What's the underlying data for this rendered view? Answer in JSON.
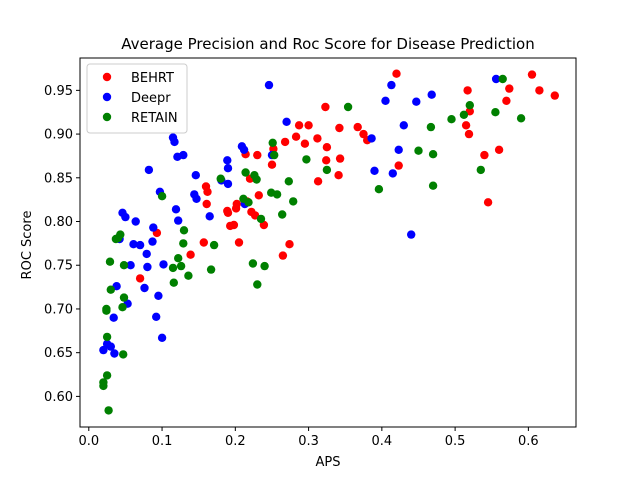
{
  "chart_data": {
    "type": "scatter",
    "title": "Average Precision and Roc Score for Disease Prediction",
    "xlabel": "APS",
    "ylabel": "ROC Score",
    "xlim": [
      -0.012,
      0.665
    ],
    "ylim": [
      0.565,
      0.987
    ],
    "xticks": [
      0.0,
      0.1,
      0.2,
      0.3,
      0.4,
      0.5,
      0.6
    ],
    "xtick_labels": [
      "0.0",
      "0.1",
      "0.2",
      "0.3",
      "0.4",
      "0.5",
      "0.6"
    ],
    "yticks": [
      0.6,
      0.65,
      0.7,
      0.75,
      0.8,
      0.85,
      0.9,
      0.95
    ],
    "ytick_labels": [
      "0.60",
      "0.65",
      "0.70",
      "0.75",
      "0.80",
      "0.85",
      "0.90",
      "0.95"
    ],
    "grid": false,
    "legend_position": "top-left",
    "series": [
      {
        "name": "BEHRT",
        "color": "#ff0000",
        "points": [
          [
            0.07,
            0.735
          ],
          [
            0.093,
            0.787
          ],
          [
            0.139,
            0.762
          ],
          [
            0.157,
            0.776
          ],
          [
            0.16,
            0.84
          ],
          [
            0.162,
            0.834
          ],
          [
            0.161,
            0.82
          ],
          [
            0.189,
            0.812
          ],
          [
            0.19,
            0.81
          ],
          [
            0.193,
            0.795
          ],
          [
            0.198,
            0.796
          ],
          [
            0.201,
            0.815
          ],
          [
            0.202,
            0.82
          ],
          [
            0.205,
            0.776
          ],
          [
            0.214,
            0.877
          ],
          [
            0.216,
            0.823
          ],
          [
            0.22,
            0.849
          ],
          [
            0.222,
            0.811
          ],
          [
            0.227,
            0.807
          ],
          [
            0.23,
            0.876
          ],
          [
            0.232,
            0.83
          ],
          [
            0.239,
            0.796
          ],
          [
            0.25,
            0.865
          ],
          [
            0.252,
            0.883
          ],
          [
            0.265,
            0.761
          ],
          [
            0.268,
            0.891
          ],
          [
            0.274,
            0.774
          ],
          [
            0.283,
            0.897
          ],
          [
            0.287,
            0.91
          ],
          [
            0.295,
            0.889
          ],
          [
            0.3,
            0.91
          ],
          [
            0.312,
            0.895
          ],
          [
            0.313,
            0.846
          ],
          [
            0.323,
            0.931
          ],
          [
            0.324,
            0.87
          ],
          [
            0.325,
            0.885
          ],
          [
            0.341,
            0.853
          ],
          [
            0.342,
            0.907
          ],
          [
            0.343,
            0.872
          ],
          [
            0.367,
            0.908
          ],
          [
            0.375,
            0.9
          ],
          [
            0.38,
            0.893
          ],
          [
            0.42,
            0.969
          ],
          [
            0.423,
            0.864
          ],
          [
            0.515,
            0.91
          ],
          [
            0.517,
            0.95
          ],
          [
            0.519,
            0.9
          ],
          [
            0.52,
            0.926
          ],
          [
            0.54,
            0.876
          ],
          [
            0.545,
            0.822
          ],
          [
            0.56,
            0.882
          ],
          [
            0.57,
            0.938
          ],
          [
            0.574,
            0.952
          ],
          [
            0.605,
            0.968
          ],
          [
            0.615,
            0.95
          ],
          [
            0.636,
            0.944
          ]
        ]
      },
      {
        "name": "Deepr",
        "color": "#0000ff",
        "points": [
          [
            0.02,
            0.653
          ],
          [
            0.025,
            0.66
          ],
          [
            0.03,
            0.657
          ],
          [
            0.034,
            0.69
          ],
          [
            0.035,
            0.649
          ],
          [
            0.038,
            0.726
          ],
          [
            0.042,
            0.78
          ],
          [
            0.046,
            0.81
          ],
          [
            0.05,
            0.805
          ],
          [
            0.053,
            0.706
          ],
          [
            0.057,
            0.75
          ],
          [
            0.061,
            0.774
          ],
          [
            0.064,
            0.8
          ],
          [
            0.07,
            0.773
          ],
          [
            0.076,
            0.724
          ],
          [
            0.079,
            0.763
          ],
          [
            0.08,
            0.748
          ],
          [
            0.082,
            0.859
          ],
          [
            0.087,
            0.777
          ],
          [
            0.088,
            0.793
          ],
          [
            0.092,
            0.691
          ],
          [
            0.095,
            0.715
          ],
          [
            0.097,
            0.834
          ],
          [
            0.1,
            0.667
          ],
          [
            0.102,
            0.751
          ],
          [
            0.115,
            0.896
          ],
          [
            0.117,
            0.891
          ],
          [
            0.119,
            0.814
          ],
          [
            0.121,
            0.874
          ],
          [
            0.122,
            0.801
          ],
          [
            0.129,
            0.876
          ],
          [
            0.144,
            0.831
          ],
          [
            0.146,
            0.853
          ],
          [
            0.147,
            0.826
          ],
          [
            0.165,
            0.806
          ],
          [
            0.181,
            0.847
          ],
          [
            0.189,
            0.87
          ],
          [
            0.19,
            0.861
          ],
          [
            0.19,
            0.843
          ],
          [
            0.209,
            0.886
          ],
          [
            0.212,
            0.882
          ],
          [
            0.213,
            0.82
          ],
          [
            0.246,
            0.956
          ],
          [
            0.25,
            0.876
          ],
          [
            0.27,
            0.914
          ],
          [
            0.386,
            0.895
          ],
          [
            0.39,
            0.858
          ],
          [
            0.405,
            0.938
          ],
          [
            0.413,
            0.956
          ],
          [
            0.415,
            0.855
          ],
          [
            0.423,
            0.882
          ],
          [
            0.43,
            0.91
          ],
          [
            0.44,
            0.785
          ],
          [
            0.447,
            0.937
          ],
          [
            0.468,
            0.945
          ],
          [
            0.556,
            0.963
          ]
        ]
      },
      {
        "name": "RETAIN",
        "color": "#008000",
        "points": [
          [
            0.02,
            0.612
          ],
          [
            0.02,
            0.616
          ],
          [
            0.024,
            0.698
          ],
          [
            0.024,
            0.7
          ],
          [
            0.025,
            0.624
          ],
          [
            0.025,
            0.668
          ],
          [
            0.027,
            0.584
          ],
          [
            0.029,
            0.754
          ],
          [
            0.03,
            0.722
          ],
          [
            0.037,
            0.78
          ],
          [
            0.04,
            0.781
          ],
          [
            0.043,
            0.785
          ],
          [
            0.046,
            0.702
          ],
          [
            0.047,
            0.648
          ],
          [
            0.048,
            0.713
          ],
          [
            0.048,
            0.75
          ],
          [
            0.1,
            0.829
          ],
          [
            0.115,
            0.747
          ],
          [
            0.116,
            0.73
          ],
          [
            0.122,
            0.758
          ],
          [
            0.126,
            0.749
          ],
          [
            0.129,
            0.775
          ],
          [
            0.13,
            0.79
          ],
          [
            0.136,
            0.738
          ],
          [
            0.167,
            0.745
          ],
          [
            0.171,
            0.773
          ],
          [
            0.18,
            0.849
          ],
          [
            0.211,
            0.826
          ],
          [
            0.214,
            0.856
          ],
          [
            0.218,
            0.822
          ],
          [
            0.224,
            0.752
          ],
          [
            0.226,
            0.853
          ],
          [
            0.229,
            0.848
          ],
          [
            0.23,
            0.728
          ],
          [
            0.235,
            0.803
          ],
          [
            0.24,
            0.749
          ],
          [
            0.249,
            0.833
          ],
          [
            0.251,
            0.89
          ],
          [
            0.253,
            0.876
          ],
          [
            0.257,
            0.831
          ],
          [
            0.264,
            0.808
          ],
          [
            0.273,
            0.846
          ],
          [
            0.279,
            0.823
          ],
          [
            0.297,
            0.871
          ],
          [
            0.325,
            0.859
          ],
          [
            0.354,
            0.931
          ],
          [
            0.396,
            0.837
          ],
          [
            0.45,
            0.881
          ],
          [
            0.467,
            0.908
          ],
          [
            0.47,
            0.877
          ],
          [
            0.47,
            0.841
          ],
          [
            0.495,
            0.917
          ],
          [
            0.512,
            0.922
          ],
          [
            0.52,
            0.933
          ],
          [
            0.535,
            0.859
          ],
          [
            0.555,
            0.925
          ],
          [
            0.565,
            0.963
          ],
          [
            0.59,
            0.918
          ]
        ]
      }
    ]
  }
}
